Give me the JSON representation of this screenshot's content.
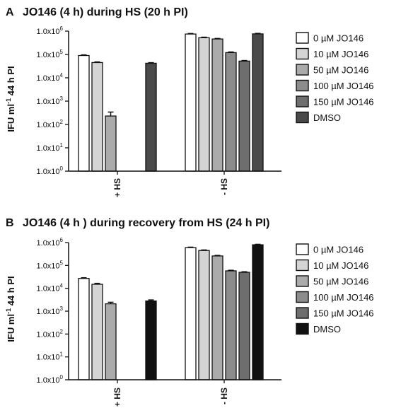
{
  "chart_data": [
    {
      "panel_letter": "A",
      "title": "JO146 (4 h) during HS (20 h PI)",
      "type": "bar",
      "y_scale": "log10",
      "ylim": [
        1,
        1000000
      ],
      "ylabel": {
        "base": "IFU ml",
        "sup": "-1",
        "rest": " 44 h PI"
      },
      "yticks": [
        {
          "v": 1,
          "label": "1.0x10",
          "exp": "0"
        },
        {
          "v": 10,
          "label": "1.0x10",
          "exp": "1"
        },
        {
          "v": 100,
          "label": "1.0x10",
          "exp": "2"
        },
        {
          "v": 1000,
          "label": "1.0x10",
          "exp": "3"
        },
        {
          "v": 10000,
          "label": "1.0x10",
          "exp": "4"
        },
        {
          "v": 100000,
          "label": "1.0x10",
          "exp": "5"
        },
        {
          "v": 1000000,
          "label": "1.0x10",
          "exp": "6"
        }
      ],
      "categories": [
        "+ HS",
        "- HS"
      ],
      "legend_position": "right",
      "series": [
        {
          "name": "0 µM JO146",
          "color": "#ffffff",
          "values": [
            90000,
            750000
          ],
          "errors": [
            6000,
            40000
          ]
        },
        {
          "name": "10 µM JO146",
          "color": "#d4d4d4",
          "values": [
            45000,
            520000
          ],
          "errors": [
            3000,
            30000
          ]
        },
        {
          "name": "50 µM JO146",
          "color": "#ababab",
          "values": [
            230,
            460000
          ],
          "errors": [
            110,
            25000
          ]
        },
        {
          "name": "100 µM JO146",
          "color": "#8c8c8c",
          "values": [
            null,
            120000
          ],
          "errors": [
            null,
            8000
          ]
        },
        {
          "name": "150 µM JO146",
          "color": "#6e6e6e",
          "values": [
            null,
            52000
          ],
          "errors": [
            null,
            3000
          ]
        },
        {
          "name": "DMSO",
          "color": "#4a4a4a",
          "values": [
            42000,
            760000
          ],
          "errors": [
            2500,
            40000
          ]
        }
      ]
    },
    {
      "panel_letter": "B",
      "title": "JO146 (4 h ) during recovery from HS (24 h PI)",
      "type": "bar",
      "y_scale": "log10",
      "ylim": [
        1,
        1000000
      ],
      "ylabel": {
        "base": "IFU ml",
        "sup": "-1",
        "rest": " 44 h PI"
      },
      "yticks": [
        {
          "v": 1,
          "label": "1.0x10",
          "exp": "0"
        },
        {
          "v": 10,
          "label": "1.0x10",
          "exp": "1"
        },
        {
          "v": 100,
          "label": "1.0x10",
          "exp": "2"
        },
        {
          "v": 1000,
          "label": "1.0x10",
          "exp": "3"
        },
        {
          "v": 10000,
          "label": "1.0x10",
          "exp": "4"
        },
        {
          "v": 100000,
          "label": "1.0x10",
          "exp": "5"
        },
        {
          "v": 1000000,
          "label": "1.0x10",
          "exp": "6"
        }
      ],
      "categories": [
        "+ HS",
        "- HS"
      ],
      "legend_position": "right",
      "series": [
        {
          "name": "0 µM JO146",
          "color": "#ffffff",
          "values": [
            27000,
            600000
          ],
          "errors": [
            2000,
            30000
          ]
        },
        {
          "name": "10 µM JO146",
          "color": "#d4d4d4",
          "values": [
            15000,
            450000
          ],
          "errors": [
            1500,
            25000
          ]
        },
        {
          "name": "50 µM JO146",
          "color": "#ababab",
          "values": [
            2100,
            260000
          ],
          "errors": [
            350,
            15000
          ]
        },
        {
          "name": "100 µM JO146",
          "color": "#8c8c8c",
          "values": [
            null,
            58000
          ],
          "errors": [
            null,
            3500
          ]
        },
        {
          "name": "150 µM JO146",
          "color": "#6e6e6e",
          "values": [
            null,
            50000
          ],
          "errors": [
            null,
            3000
          ]
        },
        {
          "name": "DMSO",
          "color": "#111111",
          "values": [
            2800,
            800000
          ],
          "errors": [
            300,
            40000
          ]
        }
      ]
    }
  ]
}
